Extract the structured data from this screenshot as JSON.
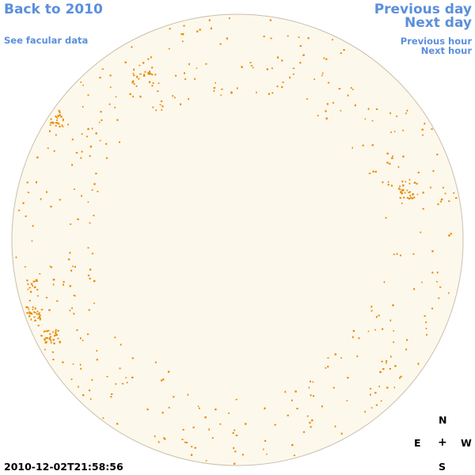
{
  "links": {
    "back": "Back to 2010",
    "facular": "See facular data",
    "previous_day": "Previous day",
    "next_day": "Next day",
    "previous_hour": "Previous hour",
    "next_hour": "Next hour"
  },
  "compass": {
    "north": "N",
    "east": "E",
    "center": "+",
    "west": "W",
    "south": "S"
  },
  "timestamp": "2010-12-02T21:58:56",
  "colors": {
    "link": "#5b8fdc",
    "disk_fill": "#fdf8ec",
    "disk_edge": "#c9c0ad",
    "facula": "#e88a00"
  }
}
